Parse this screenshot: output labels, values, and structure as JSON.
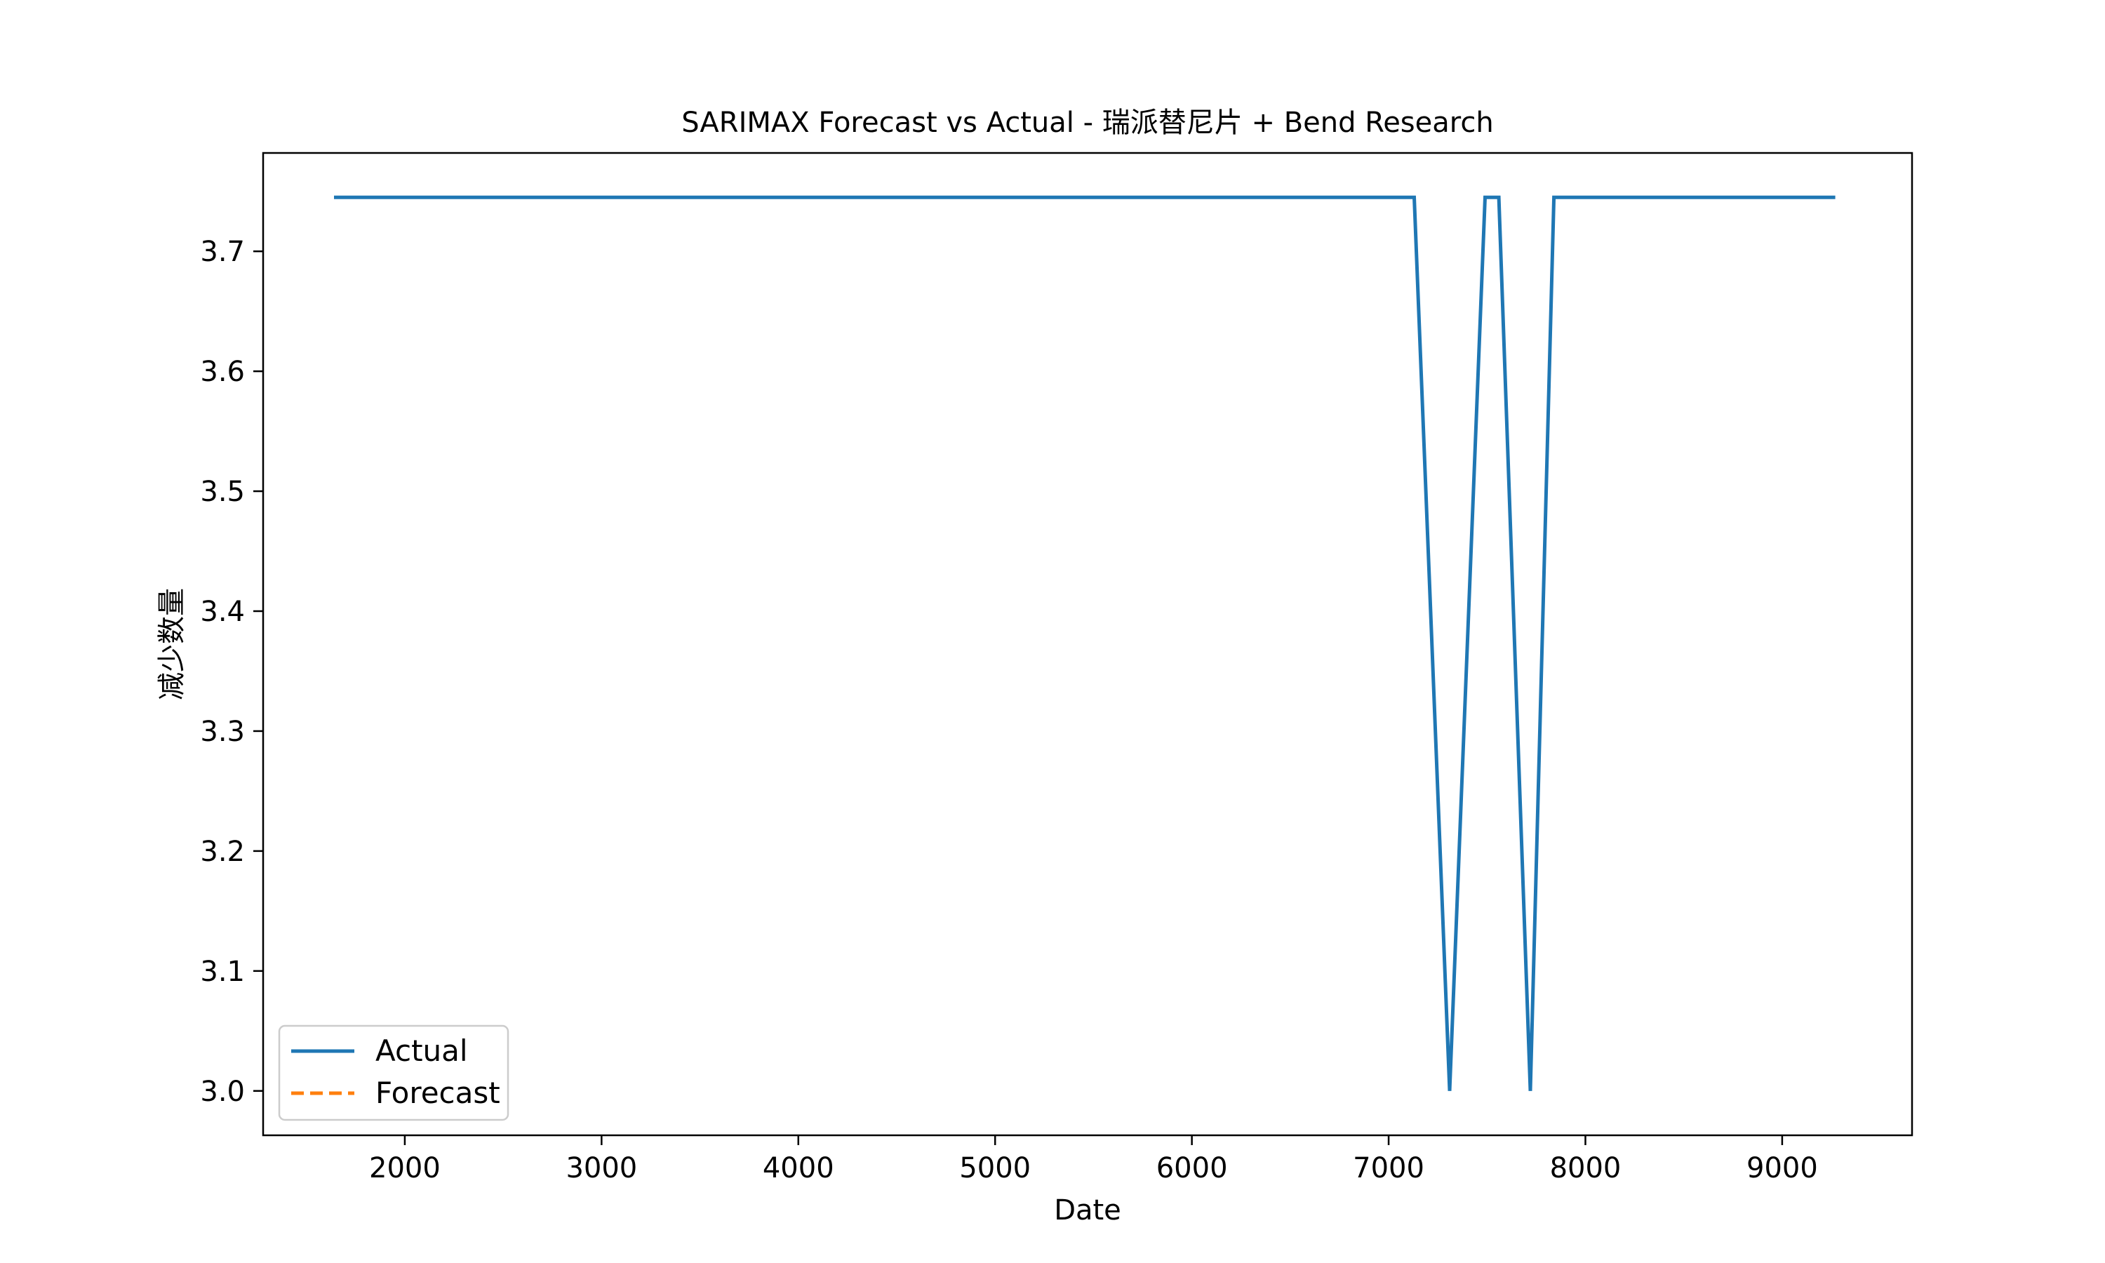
{
  "chart_data": {
    "type": "line",
    "title": "SARIMAX Forecast vs Actual - 瑞派替尼片 + Bend Research",
    "xlabel": "Date",
    "ylabel": "减少数量",
    "xlim": [
      1280,
      9660
    ],
    "ylim": [
      2.963,
      3.782
    ],
    "xticks": [
      2000,
      3000,
      4000,
      5000,
      6000,
      7000,
      8000,
      9000
    ],
    "xtick_labels": [
      "2000",
      "3000",
      "4000",
      "5000",
      "6000",
      "7000",
      "8000",
      "9000"
    ],
    "yticks": [
      3.0,
      3.1,
      3.2,
      3.3,
      3.4,
      3.5,
      3.6,
      3.7
    ],
    "ytick_labels": [
      "3.0",
      "3.1",
      "3.2",
      "3.3",
      "3.4",
      "3.5",
      "3.6",
      "3.7"
    ],
    "grid": false,
    "legend_position": "lower-left",
    "series": [
      {
        "name": "Actual",
        "color": "#1f77b4",
        "style": "solid",
        "x": [
          1640,
          7130,
          7310,
          7490,
          7560,
          7720,
          7840,
          9270
        ],
        "y": [
          3.745,
          3.745,
          3.0,
          3.745,
          3.745,
          3.0,
          3.745,
          3.745
        ]
      },
      {
        "name": "Forecast",
        "color": "#ff7f0e",
        "style": "dashed",
        "x": [],
        "y": []
      }
    ]
  }
}
